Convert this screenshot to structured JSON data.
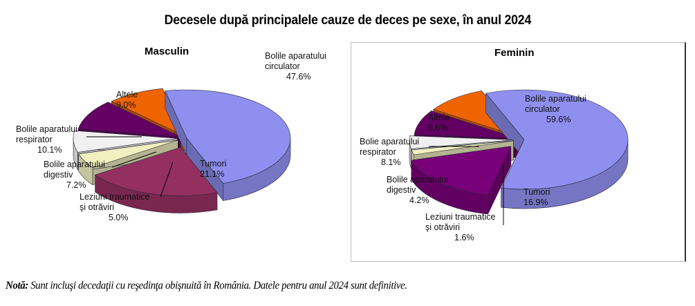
{
  "title": "Decesele după principalele cauze de deces pe sexe, în anul 2024",
  "note": {
    "label": "Notă:",
    "text": " Sunt incluşi decedaţii cu reşedinţa obişnuită în România. Datele pentru anul 2024 sunt definitive."
  },
  "chart_data": [
    {
      "type": "pie",
      "title": "Masculin",
      "style": "3d-exploded",
      "categories": [
        "Bolile aparatului circulator",
        "Tumori",
        "Leziuni traumatice şi otrăviri",
        "Bolile aparatului digestiv",
        "Bolile aparatului respirator",
        "Altele"
      ],
      "values": [
        47.6,
        21.1,
        5.0,
        7.2,
        10.1,
        9.0
      ],
      "labels": [
        {
          "line1": "Bolile aparatului",
          "line2": "circulator",
          "pct": "47.6%"
        },
        {
          "line1": "Tumori",
          "line2": "",
          "pct": "21.1%"
        },
        {
          "line1": "Leziuni traumatice",
          "line2": "şi otrăviri",
          "pct": "5.0%"
        },
        {
          "line1": "Bolile aparatului",
          "line2": "digestiv",
          "pct": "7.2%"
        },
        {
          "line1": "Bolile aparatului",
          "line2": "respirator",
          "pct": "10.1%"
        },
        {
          "line1": "Altele",
          "line2": "",
          "pct": "9.0%"
        }
      ],
      "colors": [
        "#8f8fef",
        "#943060",
        "#f0f0c0",
        "#f0f0f0",
        "#640064",
        "#f06400"
      ]
    },
    {
      "type": "pie",
      "title": "Feminin",
      "style": "3d-exploded",
      "categories": [
        "Bolile aparatului circulator",
        "Tumori",
        "Leziuni traumatice şi otrăviri",
        "Bolile aparatului digestiv",
        "Bolie aparatului respirator",
        "Altele"
      ],
      "values": [
        59.6,
        16.9,
        1.6,
        4.2,
        8.1,
        9.6
      ],
      "labels": [
        {
          "line1": "Bolile aparatului",
          "line2": "circulator",
          "pct": "59.6%"
        },
        {
          "line1": "Tumori",
          "line2": "",
          "pct": "16.9%"
        },
        {
          "line1": "Leziuni traumatice",
          "line2": "şi otrăviri",
          "pct": "1.6%"
        },
        {
          "line1": "Bolile aparatului",
          "line2": "digestiv",
          "pct": "4.2%"
        },
        {
          "line1": "Bolie aparatului",
          "line2": "respirator",
          "pct": "8.1%"
        },
        {
          "line1": "Altele",
          "line2": "",
          "pct": "9,6%"
        }
      ],
      "colors": [
        "#8f8fef",
        "#780078",
        "#f0f0c0",
        "#f0f0f0",
        "#640064",
        "#f06400"
      ]
    }
  ]
}
